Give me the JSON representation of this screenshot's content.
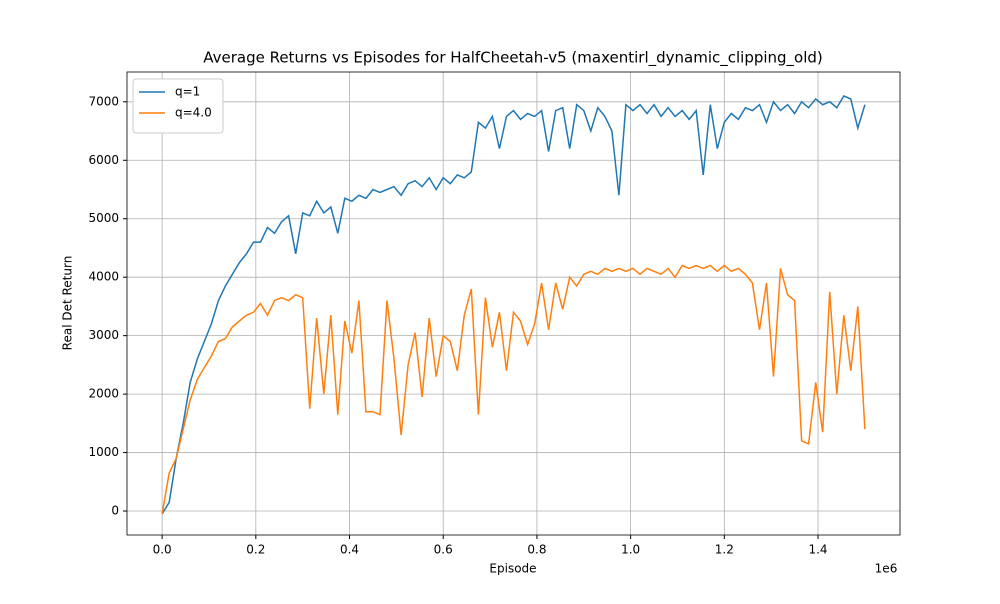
{
  "chart_data": {
    "type": "line",
    "title": "Average Returns vs Episodes for HalfCheetah-v5 (maxentirl_dynamic_clipping_old)",
    "x_label": "Episode",
    "y_label": "Real Det Return",
    "x_offset_label": "1e6",
    "x": [
      0,
      15000,
      30000,
      45000,
      60000,
      75000,
      90000,
      105000,
      120000,
      135000,
      150000,
      165000,
      180000,
      195000,
      210000,
      225000,
      240000,
      255000,
      270000,
      285000,
      300000,
      315000,
      330000,
      345000,
      360000,
      375000,
      390000,
      405000,
      420000,
      435000,
      450000,
      465000,
      480000,
      495000,
      510000,
      525000,
      540000,
      555000,
      570000,
      585000,
      600000,
      615000,
      630000,
      645000,
      660000,
      675000,
      690000,
      705000,
      720000,
      735000,
      750000,
      765000,
      780000,
      795000,
      810000,
      825000,
      840000,
      855000,
      870000,
      885000,
      900000,
      915000,
      930000,
      945000,
      960000,
      975000,
      990000,
      1005000,
      1020000,
      1035000,
      1050000,
      1065000,
      1080000,
      1095000,
      1110000,
      1125000,
      1140000,
      1155000,
      1170000,
      1185000,
      1200000,
      1215000,
      1230000,
      1245000,
      1260000,
      1275000,
      1290000,
      1305000,
      1320000,
      1335000,
      1350000,
      1365000,
      1380000,
      1395000,
      1410000,
      1425000,
      1440000,
      1455000,
      1470000,
      1485000,
      1500000
    ],
    "series": [
      {
        "name": "q=1",
        "color": "#1f77b4",
        "values": [
          -50,
          150,
          900,
          1500,
          2200,
          2600,
          2900,
          3200,
          3600,
          3850,
          4050,
          4250,
          4400,
          4600,
          4600,
          4850,
          4750,
          4950,
          5050,
          4400,
          5100,
          5050,
          5300,
          5100,
          5200,
          4750,
          5350,
          5300,
          5400,
          5350,
          5500,
          5450,
          5500,
          5550,
          5400,
          5600,
          5650,
          5550,
          5700,
          5500,
          5700,
          5600,
          5750,
          5700,
          5800,
          6650,
          6550,
          6750,
          6200,
          6750,
          6850,
          6700,
          6800,
          6750,
          6850,
          6150,
          6850,
          6900,
          6200,
          6950,
          6850,
          6500,
          6900,
          6750,
          6500,
          5400,
          6950,
          6850,
          6950,
          6800,
          6950,
          6750,
          6900,
          6750,
          6850,
          6700,
          6850,
          5750,
          6950,
          6200,
          6650,
          6800,
          6700,
          6900,
          6850,
          6950,
          6650,
          7000,
          6850,
          6950,
          6800,
          7000,
          6900,
          7050,
          6950,
          7000,
          6900,
          7100,
          7050,
          6550,
          6950
        ]
      },
      {
        "name": "q=4.0",
        "color": "#ff7f0e",
        "values": [
          -50,
          650,
          900,
          1400,
          1900,
          2250,
          2450,
          2650,
          2900,
          2950,
          3150,
          3250,
          3350,
          3400,
          3550,
          3350,
          3600,
          3650,
          3600,
          3700,
          3650,
          1750,
          3300,
          2000,
          3350,
          1650,
          3250,
          2700,
          3600,
          1700,
          1700,
          1650,
          3600,
          2600,
          1300,
          2500,
          3050,
          1950,
          3300,
          2300,
          3000,
          2900,
          2400,
          3350,
          3800,
          1650,
          3650,
          2800,
          3400,
          2400,
          3400,
          3250,
          2850,
          3200,
          3900,
          3100,
          3900,
          3450,
          4000,
          3850,
          4050,
          4100,
          4050,
          4150,
          4100,
          4150,
          4100,
          4150,
          4050,
          4150,
          4100,
          4050,
          4150,
          4000,
          4200,
          4150,
          4200,
          4150,
          4200,
          4100,
          4200,
          4100,
          4150,
          4050,
          3900,
          3100,
          3900,
          2300,
          4150,
          3700,
          3600,
          1200,
          1150,
          2200,
          1350,
          3750,
          2000,
          3350,
          2400,
          3500,
          1400
        ]
      }
    ],
    "xlim": [
      -75000,
      1575000
    ],
    "ylim": [
      -410,
      7510
    ],
    "xticks": [
      {
        "value": 0,
        "label": "0.0"
      },
      {
        "value": 200000,
        "label": "0.2"
      },
      {
        "value": 400000,
        "label": "0.4"
      },
      {
        "value": 600000,
        "label": "0.6"
      },
      {
        "value": 800000,
        "label": "0.8"
      },
      {
        "value": 1000000,
        "label": "1.0"
      },
      {
        "value": 1200000,
        "label": "1.2"
      },
      {
        "value": 1400000,
        "label": "1.4"
      }
    ],
    "yticks": [
      0,
      1000,
      2000,
      3000,
      4000,
      5000,
      6000,
      7000
    ],
    "grid": true,
    "legend": "upper left"
  }
}
